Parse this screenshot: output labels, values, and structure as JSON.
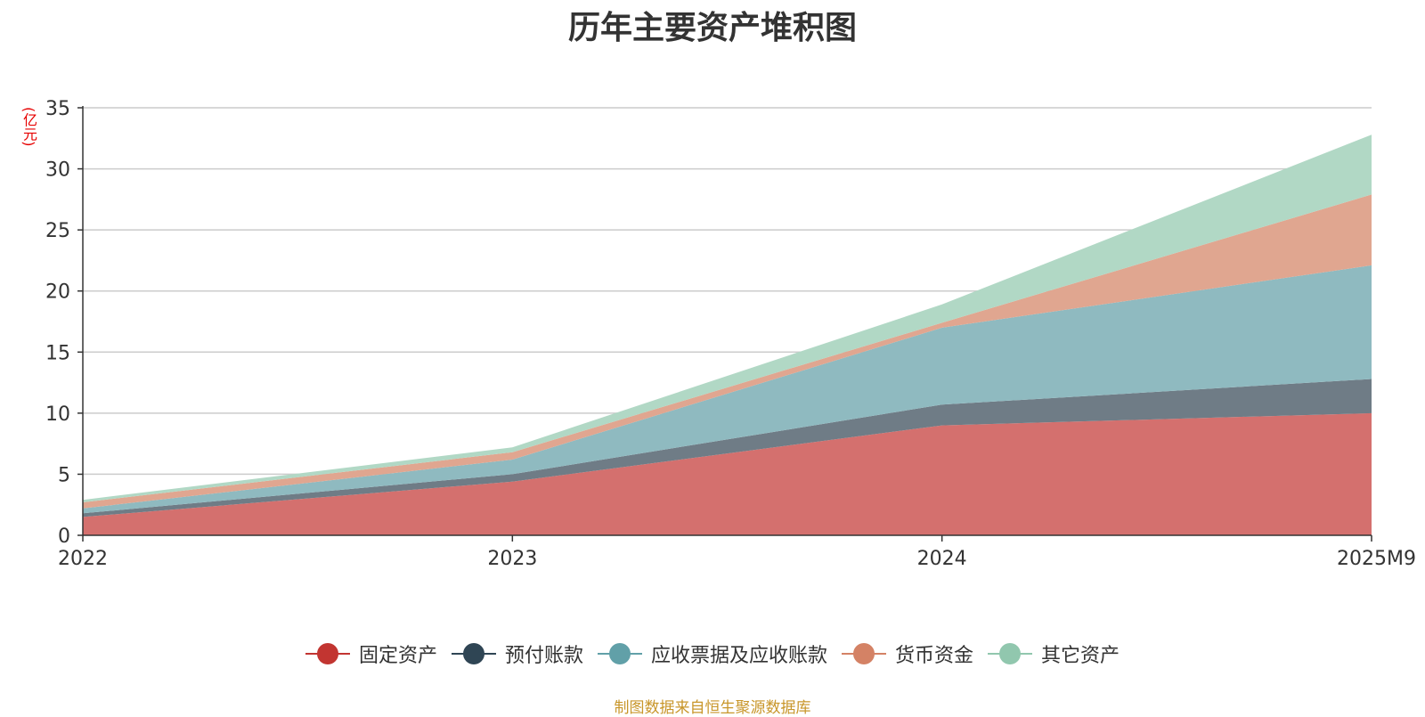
{
  "chart_data": {
    "type": "area",
    "stacked": true,
    "title": "历年主要资产堆积图",
    "unit_label": "(亿元)",
    "categories": [
      "2022",
      "2023",
      "2024",
      "2025M9"
    ],
    "ylim": [
      0,
      35
    ],
    "yticks": [
      0,
      5,
      10,
      15,
      20,
      25,
      30,
      35
    ],
    "grid": true,
    "legend_position": "bottom",
    "series": [
      {
        "name": "固定资产",
        "color": "#c23531",
        "fill": "#d4706e",
        "values": [
          1.5,
          4.4,
          9.0,
          10.0
        ]
      },
      {
        "name": "预付账款",
        "color": "#2f4554",
        "fill": "#6f7c86",
        "values": [
          0.3,
          0.6,
          1.7,
          2.8
        ]
      },
      {
        "name": "应收票据及应收账款",
        "color": "#61a0a8",
        "fill": "#8fbac0",
        "values": [
          0.4,
          1.2,
          6.3,
          9.3
        ]
      },
      {
        "name": "货币资金",
        "color": "#d48265",
        "fill": "#e0a690",
        "values": [
          0.5,
          0.6,
          0.4,
          5.8
        ]
      },
      {
        "name": "其它资产",
        "color": "#91c7ae",
        "fill": "#b1d8c5",
        "values": [
          0.2,
          0.4,
          1.5,
          4.9
        ]
      }
    ],
    "source_note": "制图数据来自恒生聚源数据库"
  }
}
